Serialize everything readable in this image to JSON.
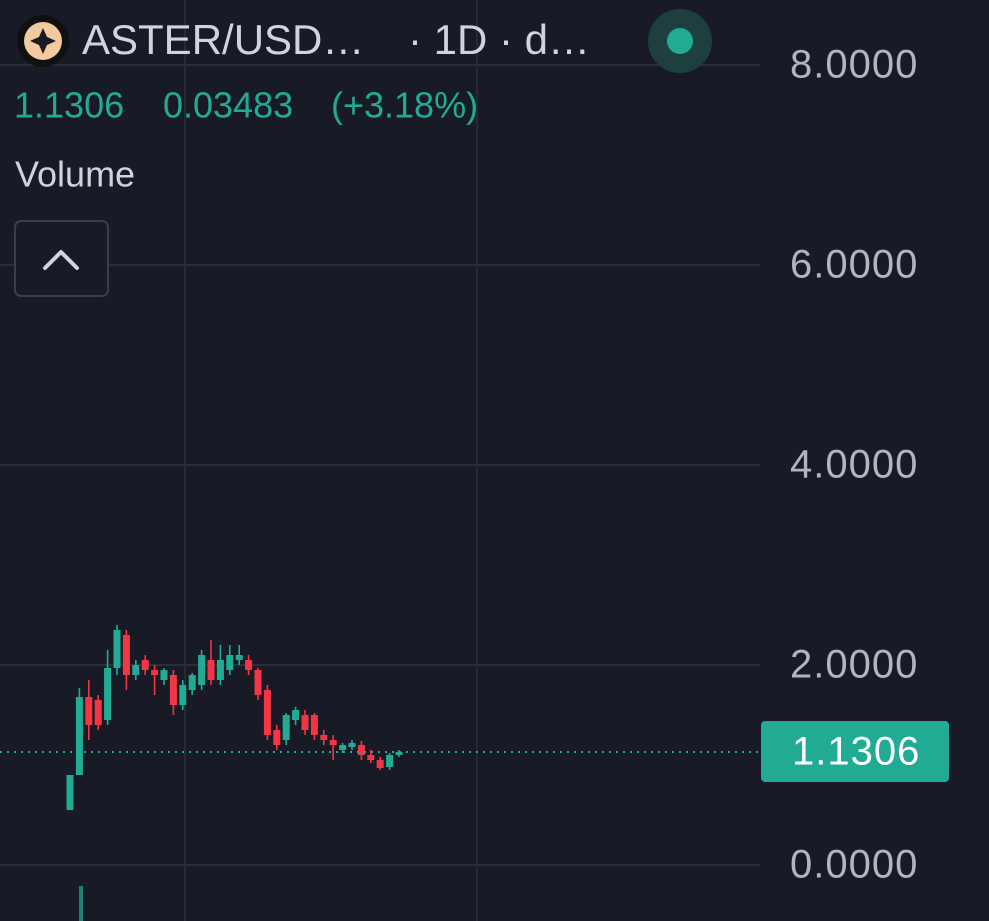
{
  "chart_data": {
    "type": "candlestick",
    "title": "ASTER/USD…",
    "interval": "· 1D · d…",
    "last_price": {
      "value": 1.1306,
      "label": "1.1306"
    },
    "change": "0.03483",
    "change_percent": "(+3.18%)",
    "indicator": "Volume",
    "up_color": "#22ab94",
    "down_color": "#f23645",
    "ylim": [
      -0.56,
      8.65
    ],
    "yticks": [
      {
        "value": 0,
        "label": "0.0000"
      },
      {
        "value": 2,
        "label": "2.0000"
      },
      {
        "value": 4,
        "label": "4.0000"
      },
      {
        "value": 6,
        "label": "6.0000"
      },
      {
        "value": 8,
        "label": "8.0000"
      }
    ],
    "grid": true,
    "open": [
      0.55,
      0.9,
      1.68,
      1.65,
      1.45,
      1.97,
      2.3,
      1.9,
      2.05,
      1.95,
      1.85,
      1.9,
      1.6,
      1.75,
      1.8,
      2.05,
      1.85,
      1.95,
      2.05,
      2.05,
      1.95,
      1.75,
      1.35,
      1.25,
      1.45,
      1.5,
      1.5,
      1.3,
      1.25,
      1.15,
      1.18,
      1.2,
      1.1,
      1.05,
      0.98,
      1.1
    ],
    "high": [
      0.9,
      1.77,
      1.85,
      1.7,
      2.15,
      2.4,
      2.35,
      2.05,
      2.1,
      2.0,
      1.97,
      1.95,
      1.85,
      1.92,
      2.15,
      2.25,
      2.2,
      2.2,
      2.2,
      2.1,
      1.97,
      1.8,
      1.4,
      1.52,
      1.58,
      1.55,
      1.52,
      1.35,
      1.3,
      1.22,
      1.25,
      1.24,
      1.15,
      1.08,
      1.12,
      1.15
    ],
    "low": [
      0.55,
      0.9,
      1.25,
      1.35,
      1.4,
      1.9,
      1.75,
      1.85,
      1.9,
      1.7,
      1.8,
      1.5,
      1.55,
      1.7,
      1.75,
      1.8,
      1.8,
      1.9,
      2.0,
      1.9,
      1.65,
      1.25,
      1.15,
      1.2,
      1.4,
      1.3,
      1.25,
      1.2,
      1.05,
      1.12,
      1.15,
      1.05,
      1.02,
      0.95,
      0.95,
      1.08
    ],
    "close": [
      0.9,
      1.68,
      1.4,
      1.4,
      1.97,
      2.35,
      1.9,
      2.0,
      1.95,
      1.9,
      1.95,
      1.6,
      1.8,
      1.9,
      2.1,
      1.85,
      2.05,
      2.1,
      2.1,
      1.95,
      1.7,
      1.3,
      1.2,
      1.5,
      1.55,
      1.35,
      1.3,
      1.25,
      1.2,
      1.2,
      1.22,
      1.1,
      1.05,
      0.97,
      1.1,
      1.1306
    ]
  }
}
